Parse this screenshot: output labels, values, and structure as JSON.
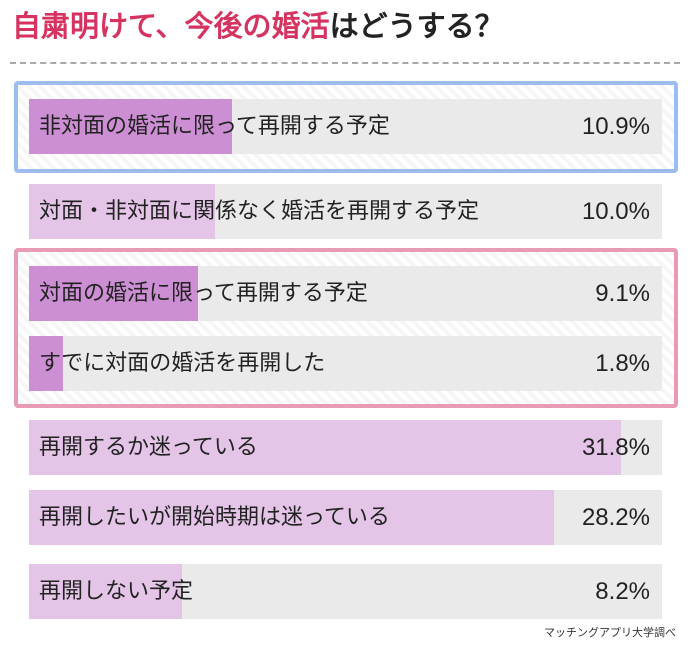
{
  "title": {
    "accent": "自粛明けて、今後の婚活",
    "rest": "はどうする？"
  },
  "source": "マッチングアプリ大学調べ",
  "colors": {
    "title_accent": "#d63361",
    "bar_strong": "#cc8fd3",
    "bar_light": "#e4c5e8",
    "bar_track": "#eaeaea",
    "highlight_blue": "#9dbdf0",
    "highlight_pink": "#e99ab7"
  },
  "chart_data": {
    "type": "bar",
    "orientation": "horizontal",
    "unit": "%",
    "categories": [
      "非対面の婚活に限って再開する予定",
      "対面・非対面に関係なく婚活を再開する予定",
      "対面の婚活に限って再開する予定",
      "すでに対面の婚活を再開した",
      "再開するか迷っている",
      "再開したいが開始時期は迷っている",
      "再開しない予定"
    ],
    "values": [
      10.9,
      10.0,
      9.1,
      1.8,
      31.8,
      28.2,
      8.2
    ],
    "value_labels": [
      "10.9%",
      "10.0%",
      "9.1%",
      "1.8%",
      "31.8%",
      "28.2%",
      "8.2%"
    ],
    "xlim": [
      0,
      34
    ],
    "emphasized_rows": [
      0,
      2,
      3
    ],
    "grid": false,
    "legend": "none"
  }
}
